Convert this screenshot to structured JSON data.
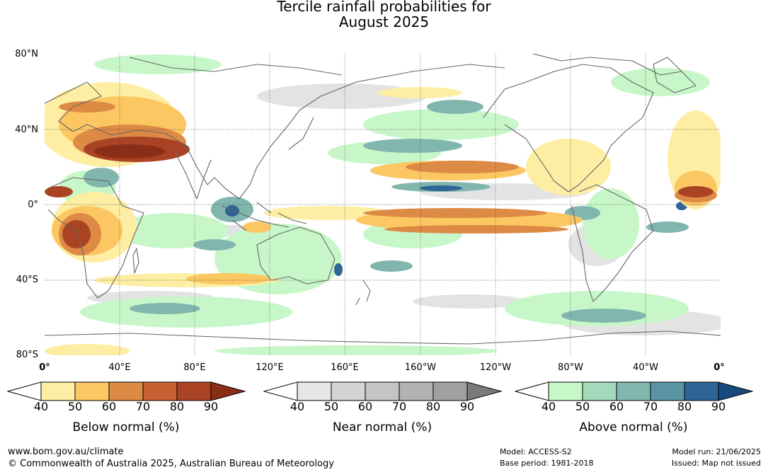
{
  "title": {
    "line1": "Tercile rainfall probabilities for",
    "line2": "August 2025"
  },
  "lat_labels": [
    "80°N",
    "40°N",
    "0°",
    "40°S",
    "80°S"
  ],
  "lon_labels": [
    "0°",
    "40°E",
    "80°E",
    "120°E",
    "160°E",
    "160°W",
    "120°W",
    "80°W",
    "40°W",
    "0°"
  ],
  "legends": [
    {
      "name": "below",
      "title": "Below normal (%)",
      "ticks": [
        "40",
        "50",
        "60",
        "70",
        "80",
        "90"
      ],
      "colors": [
        "#ffffff",
        "#fdeea3",
        "#fcc763",
        "#dd8a45",
        "#c96032",
        "#a94323",
        "#8b2e18"
      ]
    },
    {
      "name": "near",
      "title": "Near normal (%)",
      "ticks": [
        "40",
        "50",
        "60",
        "70",
        "80",
        "90"
      ],
      "colors": [
        "#ffffff",
        "#e6e6e6",
        "#d4d4d4",
        "#c4c4c4",
        "#b2b2b2",
        "#a0a0a0",
        "#7a7a7a"
      ]
    },
    {
      "name": "above",
      "title": "Above normal (%)",
      "ticks": [
        "40",
        "50",
        "60",
        "70",
        "80",
        "90"
      ],
      "colors": [
        "#ffffff",
        "#c7f7c8",
        "#a6d9bc",
        "#80b6ad",
        "#5a93a3",
        "#2f6496",
        "#17497f"
      ]
    }
  ],
  "footer": {
    "url": "www.bom.gov.au/climate",
    "copyright": "© Commonwealth of Australia 2025, Australian Bureau of Meteorology",
    "model": "Model: ACCESS-S2",
    "base_period": "Base period: 1981-2018",
    "model_run": "Model run: 21/06/2025",
    "issued": "Issued: Map not issued"
  }
}
